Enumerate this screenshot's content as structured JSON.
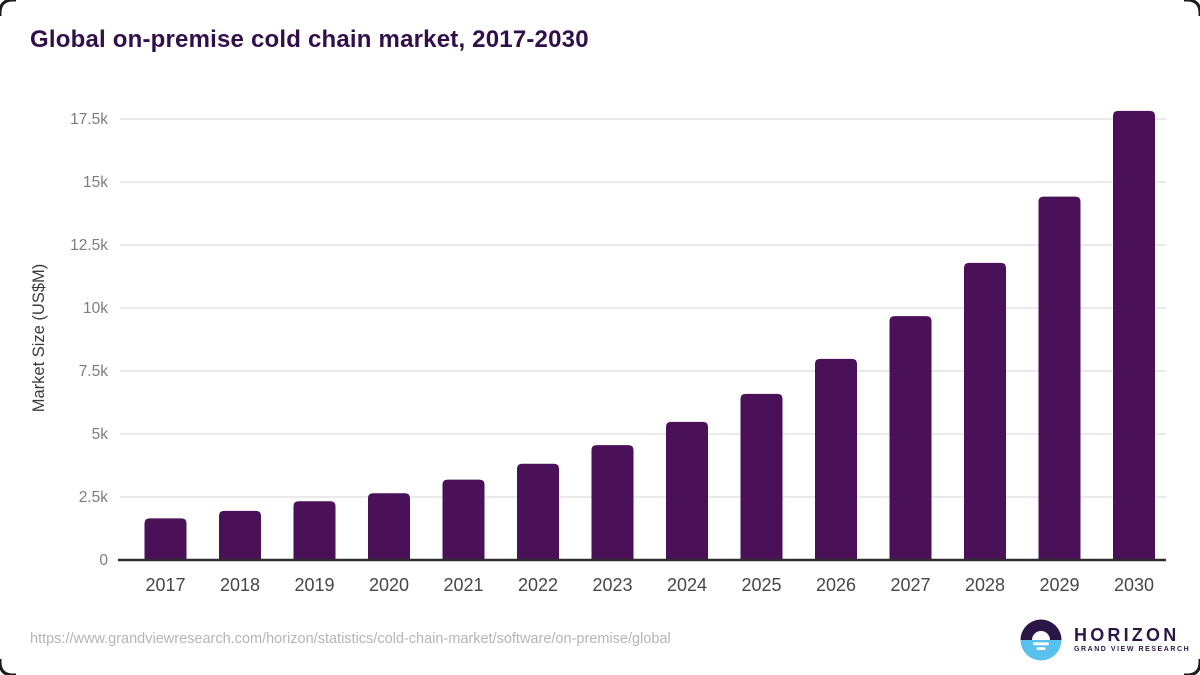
{
  "chart_data": {
    "type": "bar",
    "title": "Global on-premise cold chain market, 2017-2030",
    "ylabel": "Market Size (US$M)",
    "xlabel": "",
    "categories": [
      "2017",
      "2018",
      "2019",
      "2020",
      "2021",
      "2022",
      "2023",
      "2024",
      "2025",
      "2026",
      "2027",
      "2028",
      "2029",
      "2030"
    ],
    "values": [
      1650,
      1950,
      2330,
      2650,
      3190,
      3820,
      4560,
      5480,
      6590,
      7980,
      9680,
      11790,
      14420,
      17820
    ],
    "ylim": [
      0,
      17500
    ],
    "ytick_values": [
      0,
      2500,
      5000,
      7500,
      10000,
      12500,
      15000,
      17500
    ],
    "ytick_labels": [
      "0",
      "2.5k",
      "5k",
      "7.5k",
      "10k",
      "12.5k",
      "15k",
      "17.5k"
    ],
    "grid": true,
    "legend": false,
    "bar_color": "#4A1159"
  },
  "footer": {
    "url": "https://www.grandviewresearch.com/horizon/statistics/cold-chain-market/software/on-premise/global",
    "logo_name": "HORIZON",
    "logo_subtitle": "GRAND VIEW RESEARCH"
  },
  "colors": {
    "title": "#31104a",
    "bar": "#4A1159",
    "gridline": "#e4e4e4",
    "axis_line": "#2e2e2e",
    "x_tick_label": "#474747",
    "y_tick_label": "#7d7d7d",
    "y_axis_title": "#3b3b3b",
    "footer_url": "#b5b5b5",
    "logo_purple": "#2b1745",
    "logo_blue": "#5ac1ef",
    "corner": "#1c1c1c"
  }
}
